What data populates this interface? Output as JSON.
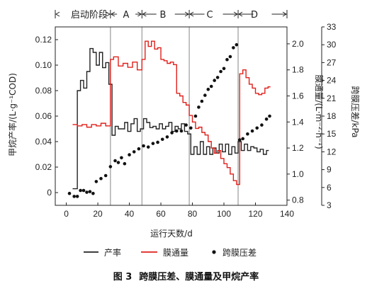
{
  "chart_data": {
    "type": "line",
    "caption_number": "图 3",
    "caption_text": "跨膜压差、膜通量及甲烷产率",
    "xlabel": "运行天数/d",
    "ylabel_left": "甲烷产率/(L·g⁻¹COD)",
    "ylabel_right": "膜通量/(L·m⁻²·h⁻¹)",
    "ylabel_right2": "跨膜压差/kPa",
    "xlim": [
      -7,
      140
    ],
    "ylim_left": [
      -0.01,
      0.13
    ],
    "ylim_right": [
      0.76,
      2.13
    ],
    "ylim_right2": [
      3,
      33
    ],
    "xticks": [
      0,
      20,
      40,
      60,
      80,
      100,
      120,
      140
    ],
    "yticks_left": [
      0,
      0.02,
      0.04,
      0.06,
      0.08,
      0.1,
      0.12
    ],
    "ytick_labels_left": [
      "0",
      "0.02",
      "0.04",
      "0.06",
      "0.08",
      "0.10",
      "0.12"
    ],
    "yticks_right": [
      0.8,
      1.0,
      1.2,
      1.4,
      1.6,
      1.8,
      2.0
    ],
    "ytick_labels_right": [
      "0.8",
      "1.0",
      "1.2",
      "1.4",
      "1.6",
      "1.8",
      "2.0"
    ],
    "yticks_right2": [
      3,
      6,
      9,
      12,
      15,
      18,
      21,
      24,
      27,
      30,
      33
    ],
    "stages": [
      {
        "label": "启动阶段",
        "start": -7,
        "end": 28
      },
      {
        "label": "A",
        "start": 28,
        "end": 48
      },
      {
        "label": "B",
        "start": 48,
        "end": 78
      },
      {
        "label": "C",
        "start": 78,
        "end": 109
      },
      {
        "label": "D",
        "start": 109,
        "end": 140
      }
    ],
    "stage_boundaries": [
      28,
      48,
      78,
      109
    ],
    "colors": {
      "methane": "#222222",
      "flux": "#e0201b",
      "tmp": "#111111",
      "divider": "#9a9a9a"
    },
    "series": [
      {
        "name": "产率",
        "axis": "left",
        "style": "step",
        "color": "#222222",
        "x": [
          4,
          7,
          9,
          11,
          13,
          15,
          17,
          19,
          21,
          23,
          25,
          27,
          29,
          31,
          33,
          35,
          37,
          39,
          41,
          43,
          45,
          47,
          49,
          51,
          53,
          55,
          57,
          59,
          61,
          63,
          65,
          67,
          69,
          71,
          73,
          75,
          77,
          79,
          81,
          83,
          85,
          87,
          89,
          91,
          93,
          95,
          97,
          99,
          101,
          103,
          105,
          107,
          109,
          111,
          113,
          115,
          117,
          119,
          121,
          123,
          125,
          127
        ],
        "y": [
          0.003,
          0.08,
          0.088,
          0.082,
          0.095,
          0.113,
          0.11,
          0.1,
          0.11,
          0.098,
          0.102,
          0.085,
          0.045,
          0.052,
          0.05,
          0.05,
          0.055,
          0.048,
          0.054,
          0.058,
          0.048,
          0.05,
          0.058,
          0.055,
          0.051,
          0.052,
          0.05,
          0.054,
          0.05,
          0.052,
          0.055,
          0.048,
          0.052,
          0.05,
          0.054,
          0.048,
          0.046,
          0.03,
          0.036,
          0.03,
          0.04,
          0.03,
          0.036,
          0.03,
          0.035,
          0.031,
          0.038,
          0.032,
          0.038,
          0.03,
          0.036,
          0.031,
          0.04,
          0.033,
          0.038,
          0.033,
          0.036,
          0.035,
          0.032,
          0.034,
          0.03,
          0.033
        ]
      },
      {
        "name": "膜通量",
        "axis": "right",
        "style": "step",
        "color": "#e0201b",
        "x": [
          4,
          7,
          10,
          13,
          16,
          19,
          22,
          25,
          28,
          30,
          33,
          36,
          39,
          42,
          45,
          48,
          50,
          52,
          54,
          56,
          58,
          60,
          62,
          64,
          66,
          68,
          70,
          72,
          74,
          76,
          78,
          80,
          82,
          84,
          86,
          88,
          90,
          92,
          94,
          96,
          98,
          100,
          102,
          104,
          106,
          108,
          110,
          112,
          114,
          116,
          118,
          120,
          122,
          124,
          126,
          128
        ],
        "y": [
          1.38,
          1.37,
          1.38,
          1.36,
          1.38,
          1.37,
          1.39,
          1.37,
          1.88,
          1.9,
          1.83,
          1.85,
          1.82,
          1.86,
          1.8,
          1.88,
          2.02,
          1.98,
          2.02,
          1.96,
          1.97,
          1.88,
          1.87,
          1.85,
          1.86,
          1.84,
          1.62,
          1.6,
          1.55,
          1.53,
          1.45,
          1.4,
          1.35,
          1.36,
          1.32,
          1.3,
          1.25,
          1.2,
          1.16,
          1.18,
          1.12,
          1.08,
          1.05,
          1.0,
          0.95,
          0.92,
          1.77,
          1.8,
          1.74,
          1.69,
          1.66,
          1.62,
          1.61,
          1.62,
          1.66,
          1.67
        ]
      },
      {
        "name": "跨膜压差",
        "axis": "right2",
        "style": "scatter",
        "color": "#111111",
        "x": [
          2,
          5,
          7,
          9,
          11,
          13,
          15,
          17,
          19,
          22,
          25,
          28,
          31,
          33,
          35,
          37,
          40,
          43,
          46,
          49,
          52,
          55,
          58,
          61,
          64,
          67,
          70,
          73,
          76,
          79,
          82,
          84,
          86,
          88,
          90,
          92,
          94,
          96,
          98,
          100,
          102,
          104,
          106,
          108,
          110,
          112,
          115,
          118,
          121,
          124,
          127,
          129
        ],
        "y": [
          5.0,
          4.5,
          4.5,
          5.5,
          5.5,
          5.2,
          5.3,
          5.0,
          7.0,
          7.5,
          8.0,
          9.5,
          10.5,
          10.2,
          11.0,
          10.0,
          11.5,
          12.0,
          12.5,
          13.0,
          12.8,
          13.4,
          13.6,
          14.1,
          14.5,
          15.2,
          15.5,
          15.5,
          16.5,
          16.0,
          18.0,
          19.5,
          20.5,
          21.5,
          22.5,
          23.0,
          24.0,
          24.5,
          25.5,
          26.0,
          27.5,
          28.0,
          29.5,
          30.0,
          14.0,
          14.2,
          15.0,
          15.5,
          16.0,
          16.5,
          17.5,
          18.0
        ]
      }
    ],
    "legend": {
      "position": "bottom",
      "items": [
        "产率",
        "膜通量",
        "跨膜压差"
      ]
    }
  }
}
